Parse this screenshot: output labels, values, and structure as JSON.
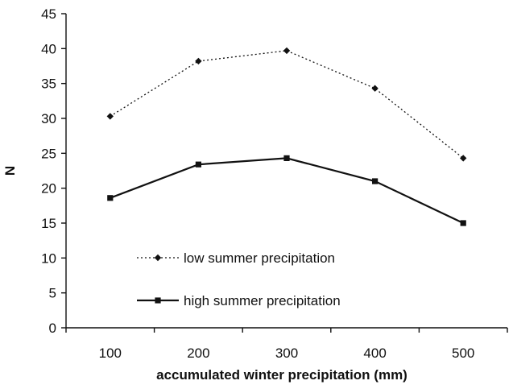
{
  "chart_data": {
    "type": "line",
    "x": [
      100,
      200,
      300,
      400,
      500
    ],
    "categories": [
      "100",
      "200",
      "300",
      "400",
      "500"
    ],
    "xlabel": "accumulated winter precipitation (mm)",
    "ylabel": "N",
    "ylim": [
      0,
      45
    ],
    "yticks": [
      "0",
      "5",
      "10",
      "15",
      "20",
      "25",
      "30",
      "35",
      "40",
      "45"
    ],
    "grid": false,
    "legend_position": "center-left",
    "series": [
      {
        "name": "low summer precipitation",
        "values": [
          30.3,
          38.2,
          39.7,
          34.3,
          24.3
        ],
        "line_style": "dotted",
        "marker": "diamond",
        "color": "#111111"
      },
      {
        "name": "high summer precipitation",
        "values": [
          18.6,
          23.4,
          24.3,
          21.0,
          15.0
        ],
        "line_style": "solid",
        "marker": "square",
        "color": "#111111"
      }
    ]
  }
}
